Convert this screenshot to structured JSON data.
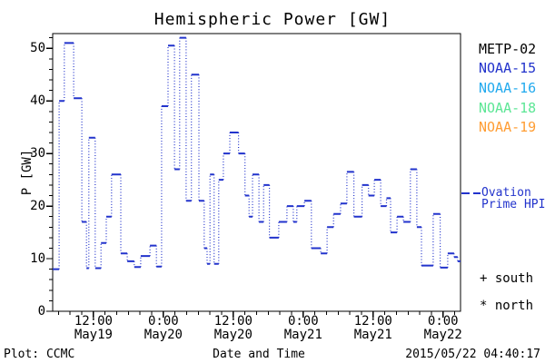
{
  "title": "Hemispheric Power [GW]",
  "footer": {
    "left": "Plot: CCMC",
    "timestamp": "2015/05/22 04:40:17"
  },
  "legend": {
    "satellites": [
      {
        "label": "METP-02",
        "color": "#000000"
      },
      {
        "label": "NOAA-15",
        "color": "#2233cc"
      },
      {
        "label": "NOAA-16",
        "color": "#22aaee"
      },
      {
        "label": "NOAA-18",
        "color": "#5ce695"
      },
      {
        "label": "NOAA-19",
        "color": "#ff9d33"
      }
    ],
    "line_entry": {
      "label": "Ovation Prime HPI",
      "color": "#2233cc",
      "style": "dashed"
    },
    "markers": [
      {
        "symbol": "+",
        "label": "south"
      },
      {
        "symbol": "*",
        "label": "north"
      }
    ]
  },
  "chart_data": {
    "type": "line",
    "line_style": "step-post",
    "title": "Hemispheric Power [GW]",
    "xlabel": "Date and Time",
    "ylabel": "P [GW]",
    "ylim": [
      0,
      52.8
    ],
    "y_major_ticks": [
      0,
      10,
      20,
      30,
      40,
      50
    ],
    "y_minor_step_gw": 2,
    "x_axis_span_hours": 70,
    "x_minor_step_hours": 2,
    "x_major_ticks": [
      {
        "hours": 7,
        "time": "12:00",
        "date": "May19"
      },
      {
        "hours": 19,
        "time": "0:00",
        "date": "May20"
      },
      {
        "hours": 31,
        "time": "12:00",
        "date": "May20"
      },
      {
        "hours": 43,
        "time": "0:00",
        "date": "May21"
      },
      {
        "hours": 55,
        "time": "12:00",
        "date": "May21"
      },
      {
        "hours": 67,
        "time": "0:00",
        "date": "May22"
      }
    ],
    "grid": false,
    "legend_position": "right",
    "series": [
      {
        "name": "Ovation Prime HPI",
        "color": "#2233cc",
        "steps_hours_gw": [
          [
            0,
            8
          ],
          [
            1.1,
            40
          ],
          [
            2.0,
            51
          ],
          [
            3.6,
            40.5
          ],
          [
            5.0,
            17
          ],
          [
            5.8,
            8.2
          ],
          [
            6.2,
            33
          ],
          [
            7.3,
            8.2
          ],
          [
            8.3,
            13
          ],
          [
            9.2,
            18
          ],
          [
            10.1,
            26
          ],
          [
            11.7,
            11
          ],
          [
            12.8,
            9.5
          ],
          [
            14.0,
            8.4
          ],
          [
            15.1,
            10.5
          ],
          [
            16.7,
            12.5
          ],
          [
            17.8,
            8.5
          ],
          [
            18.7,
            39
          ],
          [
            19.8,
            50.5
          ],
          [
            20.9,
            27
          ],
          [
            21.8,
            52
          ],
          [
            22.9,
            21
          ],
          [
            23.8,
            45
          ],
          [
            25.1,
            21
          ],
          [
            26.0,
            12
          ],
          [
            26.5,
            9
          ],
          [
            27.0,
            26
          ],
          [
            27.7,
            9
          ],
          [
            28.5,
            25
          ],
          [
            29.3,
            30
          ],
          [
            30.4,
            34
          ],
          [
            31.9,
            30
          ],
          [
            33.0,
            22
          ],
          [
            33.7,
            18
          ],
          [
            34.3,
            26
          ],
          [
            35.4,
            17
          ],
          [
            36.2,
            24
          ],
          [
            37.2,
            14
          ],
          [
            38.8,
            17
          ],
          [
            40.2,
            20
          ],
          [
            41.3,
            17
          ],
          [
            41.9,
            20
          ],
          [
            43.2,
            21
          ],
          [
            44.4,
            12
          ],
          [
            46.0,
            11
          ],
          [
            47.1,
            16
          ],
          [
            48.2,
            18.5
          ],
          [
            49.4,
            20.5
          ],
          [
            50.5,
            26.5
          ],
          [
            51.7,
            18
          ],
          [
            53.1,
            24
          ],
          [
            54.2,
            22
          ],
          [
            55.2,
            25
          ],
          [
            56.3,
            20
          ],
          [
            57.3,
            21.5
          ],
          [
            58.0,
            15
          ],
          [
            59.1,
            18
          ],
          [
            60.2,
            17
          ],
          [
            61.4,
            27
          ],
          [
            62.5,
            16
          ],
          [
            63.3,
            8.7
          ],
          [
            65.3,
            18.5
          ],
          [
            66.5,
            8.3
          ],
          [
            67.8,
            11
          ],
          [
            68.9,
            10.3
          ],
          [
            69.5,
            9.5
          ]
        ]
      }
    ]
  }
}
